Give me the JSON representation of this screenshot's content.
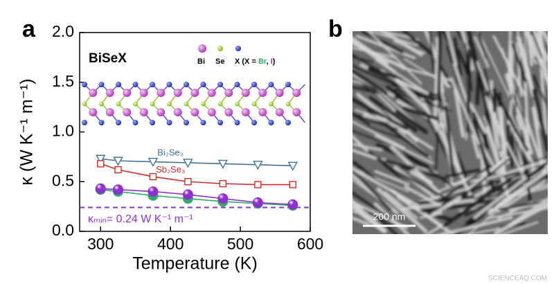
{
  "panel_labels": [
    "a",
    "b"
  ],
  "chart_data": {
    "type": "line",
    "xlabel": "Temperature (K)",
    "ylabel": "κ (W K⁻¹ m⁻¹)",
    "xlim": [
      270,
      600
    ],
    "xticks": [
      300,
      400,
      500,
      600
    ],
    "ylim": [
      0,
      2
    ],
    "yticks": [
      {
        "value": 0,
        "label": "0.0"
      },
      0.5,
      {
        "value": 1,
        "label": "1.0"
      },
      1.5,
      {
        "value": 2,
        "label": "2.0"
      }
    ],
    "x": [
      300,
      325,
      375,
      425,
      475,
      525,
      575
    ],
    "series": [
      {
        "name": "Bi₂Se₃",
        "color": "#3f7297",
        "marker": "triangle-down",
        "values": [
          0.73,
          0.71,
          0.7,
          0.69,
          0.68,
          0.67,
          0.66
        ]
      },
      {
        "name": "Sb₂Se₃",
        "color": "#d02a2a",
        "marker": "square",
        "values": [
          0.68,
          0.62,
          0.55,
          0.5,
          0.48,
          0.47,
          0.47
        ]
      },
      {
        "color": "#2fae6a",
        "marker": "sphere",
        "values": [
          0.42,
          0.4,
          0.36,
          0.33,
          0.3,
          0.28,
          0.26
        ]
      },
      {
        "color": "#8e2fd0",
        "marker": "sphere",
        "values": [
          0.43,
          0.42,
          0.4,
          0.37,
          0.33,
          0.29,
          0.27
        ]
      }
    ],
    "hline": 0.24,
    "hline_color": "#8e2fd0",
    "hline_label": "κₘᵢₙ= 0.24 W K⁻¹ m⁻¹",
    "inset_title": "BiSeX",
    "inset_legend": [
      "Bi",
      "Se",
      "X (X = ",
      "Br",
      ", ",
      "I",
      ")"
    ]
  },
  "image": {
    "scale_bar": "200 nm"
  },
  "watermark": "SCIENCEAQ.COM"
}
